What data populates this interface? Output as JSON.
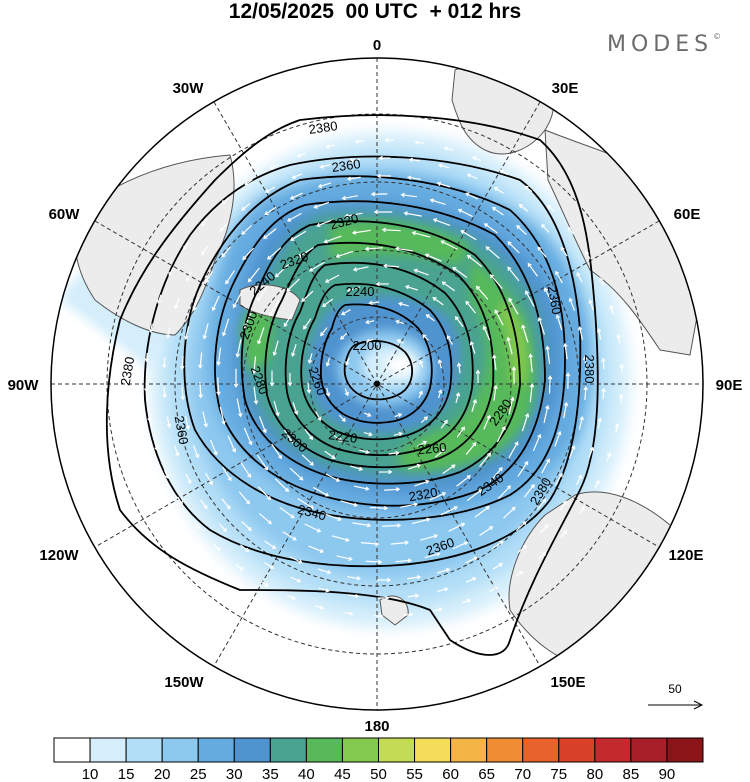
{
  "title": "12/05/2025  00 UTC  + 012 hrs",
  "brand": "MODES",
  "brand_mark": "©",
  "longitude_labels": {
    "lon_0": "0",
    "lon_30e": "30E",
    "lon_60e": "60E",
    "lon_90e": "90E",
    "lon_120e": "120E",
    "lon_150e": "150E",
    "lon_180": "180",
    "lon_150w": "150W",
    "lon_120w": "120W",
    "lon_90w": "90W",
    "lon_60w": "60W",
    "lon_30w": "30W"
  },
  "contour_labels": [
    "2380",
    "2360",
    "2320",
    "2320",
    "2300",
    "2240",
    "2200",
    "2240",
    "2220",
    "2260",
    "2280",
    "2300",
    "2340",
    "2320",
    "2340",
    "2360",
    "2380",
    "2360",
    "2380",
    "2380",
    "2360",
    "2260",
    "2280"
  ],
  "reference_vector": {
    "label": "50"
  },
  "colorbar": {
    "ticks": [
      "10",
      "15",
      "20",
      "25",
      "30",
      "35",
      "40",
      "45",
      "50",
      "55",
      "60",
      "65",
      "70",
      "75",
      "80",
      "85",
      "90"
    ],
    "colors": [
      "#ffffff",
      "#d4eefb",
      "#b2def7",
      "#8dc8ef",
      "#65abe0",
      "#4f93cf",
      "#48a390",
      "#57b95a",
      "#83c94d",
      "#c4dc55",
      "#f5dc5a",
      "#f3b545",
      "#ef8c34",
      "#e8622b",
      "#d94128",
      "#c3292d",
      "#a71f28",
      "#8a1418"
    ]
  },
  "colors": {
    "land": "#ececec",
    "contour": "#000000",
    "vector": "#ffffff"
  }
}
